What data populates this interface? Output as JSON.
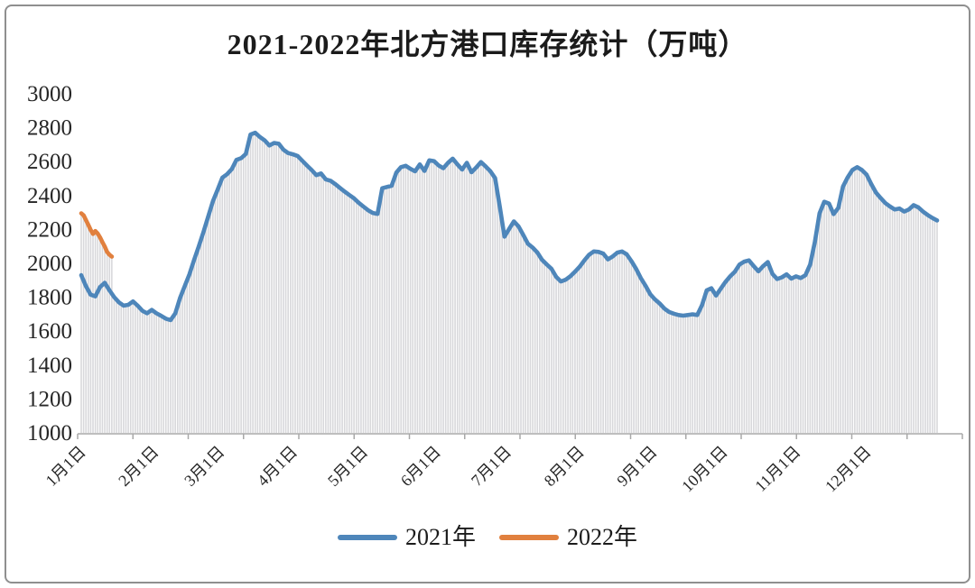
{
  "title": "2021-2022年北方港口库存统计（万吨）",
  "legend": [
    {
      "label": "2021年",
      "color": "#4e86ba"
    },
    {
      "label": "2022年",
      "color": "#e1803e"
    }
  ],
  "y_axis": {
    "ticks": [
      3000,
      2800,
      2600,
      2400,
      2200,
      2000,
      1800,
      1600,
      1400,
      1200,
      1000
    ]
  },
  "x_axis": {
    "labels": [
      "1月1日",
      "2月1日",
      "3月1日",
      "4月1日",
      "5月1日",
      "6月1日",
      "7月1日",
      "8月1日",
      "9月1日",
      "10月1日",
      "11月1日",
      "12月1日"
    ],
    "label_days": [
      1,
      32,
      60,
      91,
      121,
      152,
      182,
      213,
      244,
      274,
      305,
      335
    ]
  },
  "chart_data": {
    "type": "line",
    "title": "2021-2022年北方港口库存统计（万吨）",
    "x_unit": "day_of_year",
    "xlim_days": [
      1,
      365
    ],
    "ylim": [
      1000,
      3000
    ],
    "y_tick_step": 200,
    "grid": "no horizontal gridlines; gray vertical droplines under the curves",
    "legend_position": "bottom-center",
    "dropline_color": "#d8d8db",
    "axis_color": "#a8a8a8",
    "series": [
      {
        "name": "2021年",
        "color": "#4e86ba",
        "start_day": 1,
        "step_days": 2,
        "values": [
          1925,
          1860,
          1810,
          1800,
          1855,
          1880,
          1835,
          1795,
          1765,
          1745,
          1750,
          1770,
          1745,
          1715,
          1700,
          1720,
          1700,
          1685,
          1668,
          1660,
          1700,
          1790,
          1860,
          1930,
          2015,
          2095,
          2180,
          2270,
          2360,
          2430,
          2500,
          2520,
          2550,
          2605,
          2615,
          2640,
          2755,
          2765,
          2740,
          2720,
          2690,
          2705,
          2700,
          2665,
          2645,
          2638,
          2628,
          2600,
          2572,
          2545,
          2515,
          2525,
          2490,
          2482,
          2462,
          2440,
          2418,
          2398,
          2378,
          2352,
          2330,
          2308,
          2292,
          2286,
          2438,
          2445,
          2452,
          2530,
          2562,
          2570,
          2552,
          2538,
          2578,
          2540,
          2602,
          2598,
          2572,
          2556,
          2588,
          2612,
          2578,
          2548,
          2588,
          2532,
          2560,
          2592,
          2566,
          2538,
          2498,
          2330,
          2152,
          2198,
          2242,
          2212,
          2162,
          2110,
          2088,
          2058,
          2015,
          1988,
          1962,
          1915,
          1888,
          1898,
          1918,
          1945,
          1975,
          2012,
          2045,
          2065,
          2062,
          2052,
          2018,
          2035,
          2058,
          2065,
          2048,
          2008,
          1962,
          1908,
          1862,
          1812,
          1782,
          1758,
          1728,
          1708,
          1698,
          1690,
          1686,
          1690,
          1694,
          1690,
          1748,
          1835,
          1848,
          1805,
          1845,
          1885,
          1918,
          1945,
          1988,
          2005,
          2012,
          1978,
          1948,
          1978,
          2002,
          1932,
          1902,
          1912,
          1930,
          1905,
          1918,
          1908,
          1925,
          1988,
          2120,
          2290,
          2358,
          2348,
          2285,
          2322,
          2448,
          2502,
          2545,
          2562,
          2545,
          2518,
          2462,
          2412,
          2380,
          2350,
          2330,
          2312,
          2318,
          2300,
          2312,
          2338,
          2325,
          2300,
          2280,
          2262,
          2248
        ]
      },
      {
        "name": "2022年",
        "color": "#e1803e",
        "start_day": 1,
        "step_days": 1,
        "values": [
          2290,
          2278,
          2250,
          2222,
          2192,
          2168,
          2185,
          2170,
          2148,
          2120,
          2094,
          2062,
          2045,
          2034
        ]
      }
    ]
  }
}
